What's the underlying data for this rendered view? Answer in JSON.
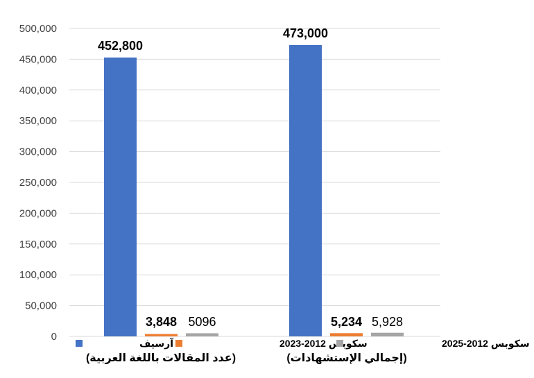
{
  "chart_data": {
    "type": "bar",
    "categories": [
      "(عدد المقالات باللغة العربية)",
      "(إجمالي الإستشهادات)"
    ],
    "series": [
      {
        "name": "آرسيف",
        "color": "#4472C4",
        "values": [
          452800,
          473000
        ]
      },
      {
        "name": "سكوبس 2012-2023",
        "color": "#ED7D31",
        "values": [
          3848,
          5234
        ]
      },
      {
        "name": "سكوبس 2012-2025",
        "color": "#A5A5A5",
        "values": [
          5096,
          5928
        ]
      }
    ],
    "data_labels": [
      [
        "452,800",
        "473,000"
      ],
      [
        "3,848",
        "5,234"
      ],
      [
        "5096",
        "5,928"
      ]
    ],
    "data_label_bold": [
      [
        true,
        true
      ],
      [
        true,
        true
      ],
      [
        false,
        false
      ]
    ],
    "ylim": [
      0,
      500000
    ],
    "yticks": [
      0,
      50000,
      100000,
      150000,
      200000,
      250000,
      300000,
      350000,
      400000,
      450000,
      500000
    ],
    "ytick_labels": [
      "0",
      "50,000",
      "100,000",
      "150,000",
      "200,000",
      "250,000",
      "300,000",
      "350,000",
      "400,000",
      "450,000",
      "500,000"
    ],
    "grid": true,
    "legend_position": "bottom"
  }
}
